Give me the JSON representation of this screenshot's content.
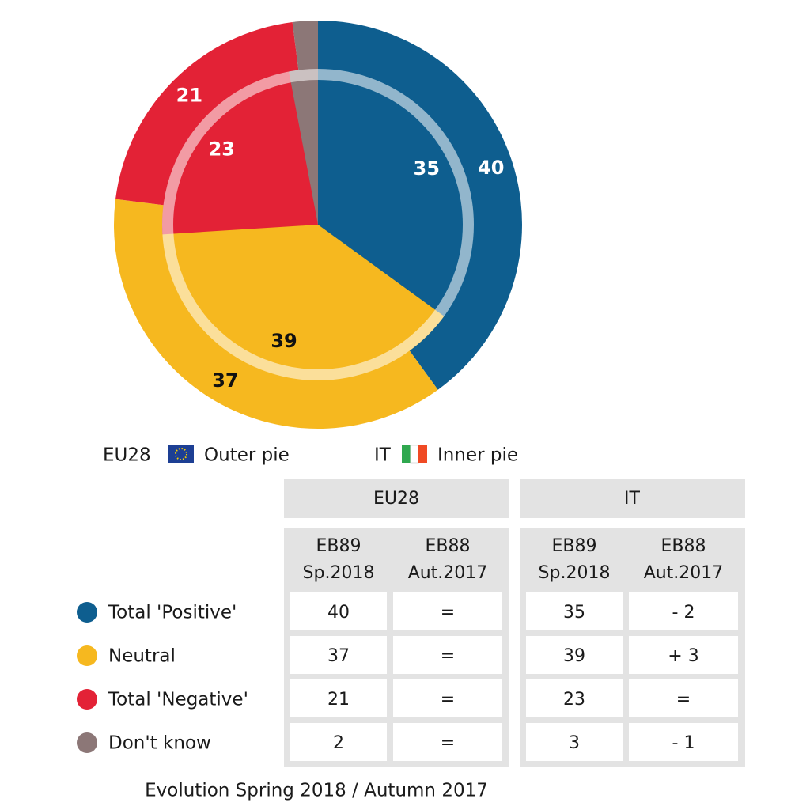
{
  "chart_data": {
    "type": "pie",
    "categories": [
      "Total 'Positive'",
      "Neutral",
      "Total 'Negative'",
      "Don't know"
    ],
    "colors": [
      "#0e5e8f",
      "#f6b81f",
      "#e32236",
      "#8c7777"
    ],
    "label_colors": [
      "#ffffff",
      "#111111",
      "#ffffff",
      "#ffffff"
    ],
    "series": [
      {
        "name": "EU28",
        "legend": "Outer pie",
        "values": [
          40,
          37,
          21,
          2
        ]
      },
      {
        "name": "IT",
        "legend": "Inner pie",
        "values": [
          35,
          39,
          23,
          3
        ]
      }
    ]
  },
  "table": {
    "groups": [
      "EU28",
      "IT"
    ],
    "columns": [
      [
        "EB89",
        "Sp.2018"
      ],
      [
        "EB88",
        "Aut.2017"
      ],
      [
        "EB89",
        "Sp.2018"
      ],
      [
        "EB88",
        "Aut.2017"
      ]
    ],
    "rows": [
      [
        40,
        "=",
        35,
        "- 2"
      ],
      [
        37,
        "=",
        39,
        "+ 3"
      ],
      [
        21,
        "=",
        23,
        "="
      ],
      [
        2,
        "=",
        3,
        "- 1"
      ]
    ],
    "note": "Evolution Spring 2018 / Autumn 2017"
  }
}
